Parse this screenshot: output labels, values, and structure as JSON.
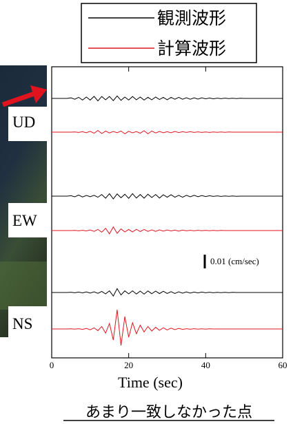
{
  "chart_data": {
    "type": "waveform",
    "legend": [
      {
        "name": "観測波形",
        "color": "#000000"
      },
      {
        "name": "計算波形",
        "color": "#e0141e"
      }
    ],
    "xlabel": "Time (sec)",
    "xlim": [
      0,
      60
    ],
    "xticks": [
      0,
      20,
      40,
      60
    ],
    "scale_bar": {
      "value": 0.01,
      "label": "0.01 (cm/sec)"
    },
    "caption": "あまり一致しなかった点",
    "x": [
      0,
      1,
      2,
      3,
      4,
      5,
      6,
      7,
      8,
      9,
      10,
      11,
      12,
      13,
      14,
      15,
      16,
      17,
      18,
      19,
      20,
      21,
      22,
      23,
      24,
      25,
      26,
      27,
      28,
      29,
      30,
      31,
      32,
      33,
      34,
      35,
      36,
      37,
      38,
      39,
      40,
      41,
      42,
      43,
      44,
      45,
      46,
      47,
      48,
      49,
      50,
      51,
      52,
      53,
      54,
      55,
      56,
      57,
      58,
      59,
      60
    ],
    "components": [
      {
        "label": "UD",
        "observed": [
          0,
          0,
          0,
          0,
          0,
          0.0004,
          -0.0006,
          0.0008,
          -0.0012,
          0.001,
          -0.0012,
          0.0015,
          -0.0018,
          0.0014,
          -0.001,
          0.0014,
          -0.0016,
          0.0018,
          -0.0014,
          0.001,
          -0.0012,
          0.0014,
          -0.001,
          0.001,
          -0.0012,
          0.0008,
          -0.001,
          0.001,
          -0.0008,
          0.0008,
          -0.001,
          0.0008,
          -0.0006,
          0.0008,
          -0.0006,
          0.0005,
          -0.0006,
          0.0004,
          -0.0005,
          0.0004,
          -0.0003,
          0.0003,
          -0.0003,
          0.0002,
          -0.0002,
          0.0002,
          -0.0001,
          0.0001,
          -0.0001,
          0.0001,
          0,
          0,
          0,
          0,
          0,
          0,
          0,
          0,
          0,
          0,
          0
        ],
        "computed": [
          0,
          0,
          0,
          0,
          0,
          0,
          0.0001,
          -0.0002,
          0.0003,
          -0.0004,
          0.0006,
          -0.0008,
          0.0012,
          -0.001,
          0.0008,
          -0.0006,
          0.0005,
          -0.0004,
          0.0008,
          -0.0012,
          0.0006,
          -0.0005,
          0.0004,
          -0.0008,
          0.001,
          -0.0012,
          0.0008,
          -0.0006,
          0.0005,
          -0.0004,
          0.0003,
          -0.0004,
          0.0005,
          -0.0003,
          0.0003,
          -0.0002,
          0.0003,
          -0.0002,
          0.0002,
          -0.0002,
          0.0001,
          -0.0002,
          0.0001,
          -0.0001,
          0.0001,
          -0.0001,
          0.0001,
          0,
          0,
          0,
          0,
          0,
          0,
          0,
          0,
          0,
          0,
          0,
          0,
          0,
          0
        ]
      },
      {
        "label": "EW",
        "observed": [
          0,
          0,
          0,
          0,
          0,
          0.0003,
          -0.0005,
          0.0008,
          -0.0006,
          0.0005,
          -0.0004,
          0.0006,
          -0.0008,
          0.0012,
          -0.0015,
          0.0018,
          -0.002,
          0.0016,
          -0.0012,
          0.0014,
          -0.0016,
          0.0018,
          -0.0014,
          0.0012,
          -0.0015,
          0.0014,
          -0.001,
          0.0012,
          -0.0014,
          0.001,
          -0.0008,
          0.001,
          -0.0008,
          0.0006,
          -0.0008,
          0.0006,
          -0.0005,
          0.0006,
          -0.0004,
          0.0004,
          -0.0003,
          0.0003,
          -0.0002,
          0.0002,
          -0.0002,
          0.0001,
          -0.0001,
          0.0001,
          -0.0001,
          0,
          0,
          0,
          0,
          0,
          0,
          0,
          0,
          0,
          0,
          0,
          0
        ],
        "computed": [
          0,
          0,
          0,
          0,
          0,
          0,
          0.0001,
          -0.0002,
          0.0002,
          -0.0003,
          0.0004,
          -0.0006,
          0.0008,
          -0.0012,
          0.0016,
          -0.0024,
          0.0026,
          -0.002,
          0.0012,
          -0.001,
          0.0008,
          -0.001,
          0.0009,
          -0.0007,
          0.0008,
          -0.0006,
          0.0005,
          -0.0006,
          0.0005,
          -0.0004,
          0.0004,
          -0.0003,
          0.0003,
          -0.0004,
          0.0003,
          -0.0002,
          0.0002,
          -0.0002,
          0.0002,
          -0.0001,
          0.0001,
          -0.0001,
          0.0001,
          -0.0001,
          0.0001,
          0,
          0,
          0,
          0,
          0,
          0,
          0,
          0,
          0,
          0,
          0,
          0,
          0,
          0,
          0,
          0
        ]
      },
      {
        "label": "NS",
        "observed": [
          0,
          0,
          0,
          0,
          0,
          0.0002,
          -0.0002,
          0.0003,
          -0.0003,
          0.0004,
          -0.0004,
          0.0005,
          -0.0006,
          0.0008,
          -0.001,
          0.0012,
          -0.0026,
          0.0028,
          -0.0018,
          0.0012,
          -0.001,
          0.0012,
          -0.0011,
          0.001,
          -0.0012,
          0.0011,
          -0.0009,
          0.001,
          -0.0008,
          0.0009,
          -0.0007,
          0.0006,
          -0.0007,
          0.0005,
          -0.0005,
          0.0004,
          -0.0004,
          0.0003,
          -0.0003,
          0.0003,
          -0.0002,
          0.0002,
          -0.0002,
          0.0001,
          -0.0001,
          0.0001,
          -0.0001,
          0.0001,
          0,
          0,
          0,
          0,
          0,
          0,
          0,
          0,
          0,
          0,
          0,
          0,
          0
        ],
        "computed": [
          0,
          0,
          0,
          0,
          0,
          0.0001,
          -0.0001,
          0.0002,
          -0.0003,
          0.0004,
          -0.0006,
          0.0008,
          -0.0012,
          0.0018,
          -0.003,
          0.004,
          -0.008,
          0.014,
          -0.012,
          0.009,
          -0.006,
          0.0045,
          -0.0035,
          0.0028,
          -0.0022,
          0.0018,
          -0.0015,
          0.0012,
          -0.001,
          0.0009,
          -0.0007,
          0.0006,
          -0.0005,
          0.0004,
          -0.0003,
          0.0002,
          -0.0002,
          0.0002,
          -0.0001,
          0.0001,
          -0.0001,
          0.0001,
          0,
          0,
          0,
          0,
          0,
          0,
          0,
          0,
          0,
          0,
          0,
          0,
          0,
          0,
          0,
          0,
          0,
          0,
          0
        ]
      }
    ]
  }
}
